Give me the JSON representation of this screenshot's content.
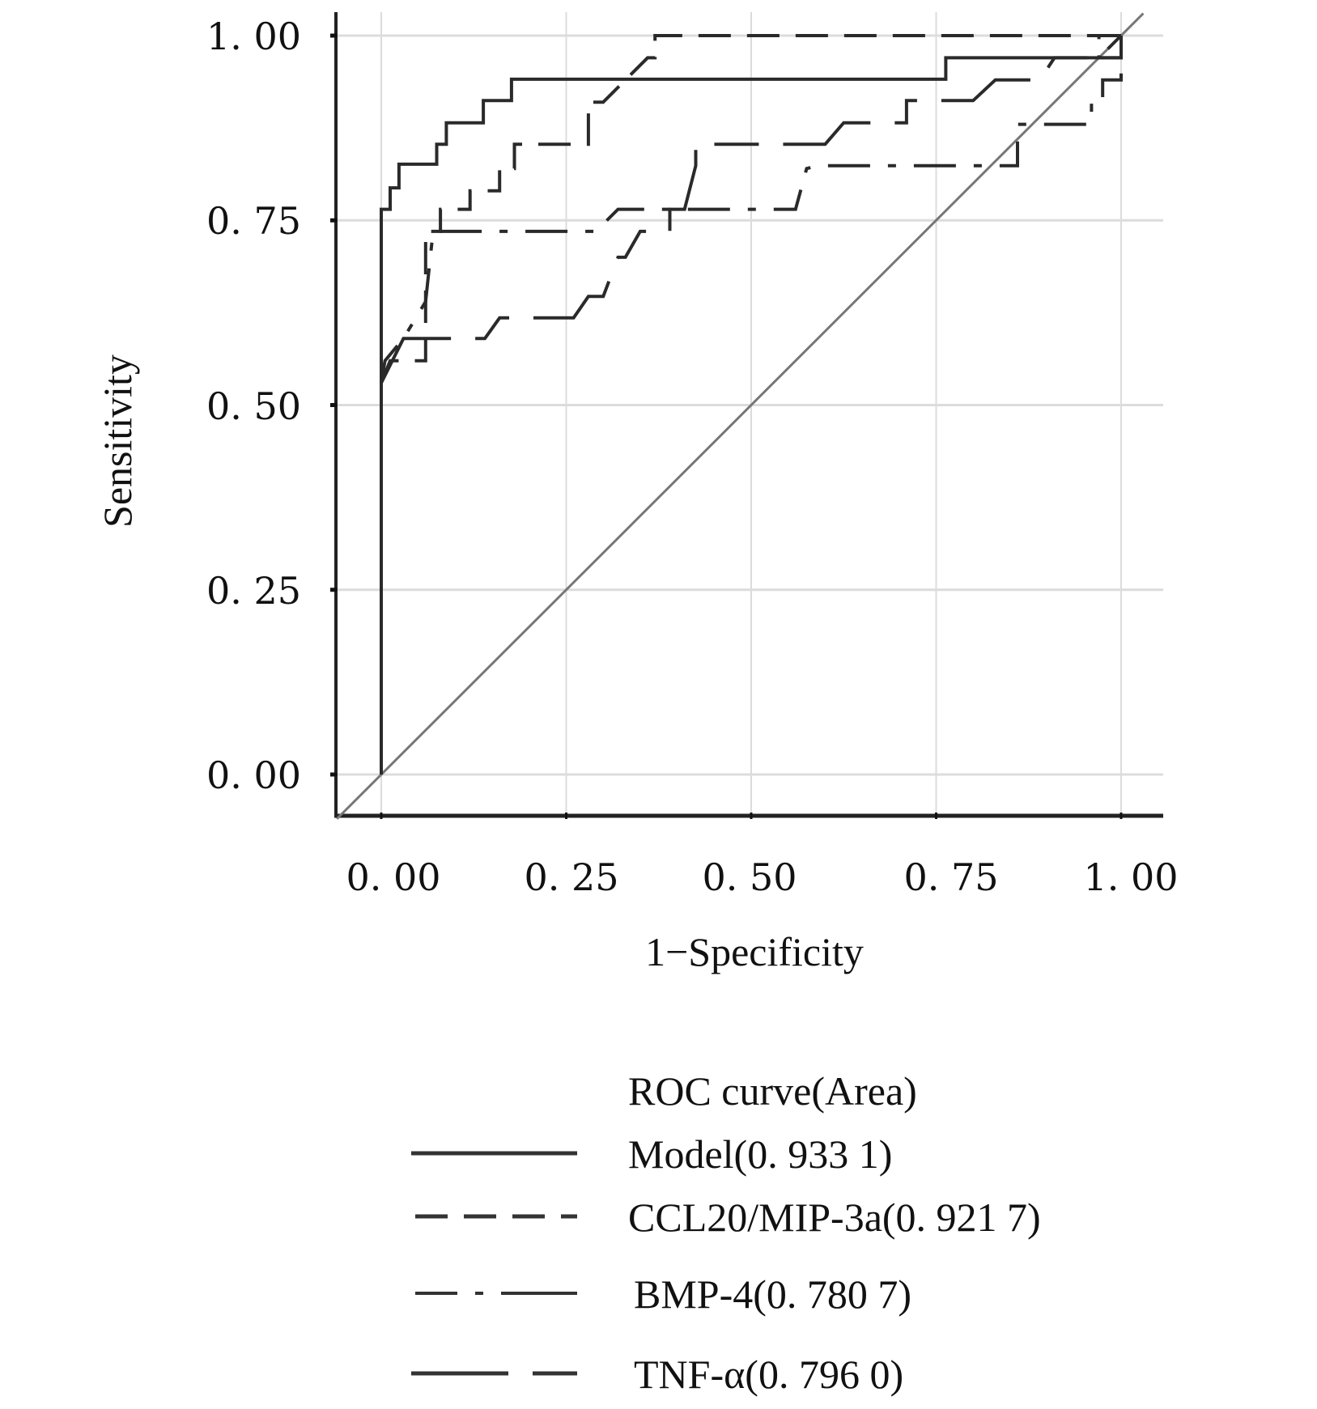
{
  "chart_data": {
    "type": "line",
    "title": "",
    "xlabel": "1−Specificity",
    "ylabel": "Sensitivity",
    "xlim": [
      -0.06,
      1.06
    ],
    "ylim": [
      -0.06,
      1.03
    ],
    "grid": true,
    "x_ticks": [
      0,
      0.25,
      0.5,
      0.75,
      1.0
    ],
    "y_ticks": [
      0,
      0.25,
      0.5,
      0.75,
      1.0
    ],
    "x_tick_labels": [
      "0. 00",
      "0. 25",
      "0. 50",
      "0. 75",
      "1. 00"
    ],
    "y_tick_labels": [
      "0. 00",
      "0. 25",
      "0. 50",
      "0. 75",
      "1. 00"
    ],
    "legend": {
      "title": "ROC curve(Area)",
      "placement": "bottom"
    },
    "reference_line": {
      "name": "Reference",
      "x": [
        -0.06,
        1.03
      ],
      "y": [
        -0.06,
        1.03
      ]
    },
    "series": [
      {
        "name": "Model",
        "label": "Model(0. 933  1)",
        "auc": 0.9331,
        "style": "solid",
        "x": [
          0,
          0,
          0.012,
          0.012,
          0.024,
          0.024,
          0.075,
          0.075,
          0.088,
          0.088,
          0.138,
          0.138,
          0.176,
          0.176,
          0.763,
          0.763,
          1.0,
          1.0
        ],
        "y": [
          0,
          0.765,
          0.765,
          0.794,
          0.794,
          0.826,
          0.826,
          0.853,
          0.853,
          0.882,
          0.882,
          0.912,
          0.912,
          0.941,
          0.941,
          0.97,
          0.97,
          1.0
        ]
      },
      {
        "name": "CCL20/MIP-3a",
        "label": "CCL20/MIP-3a(0. 921  7)",
        "auc": 0.9217,
        "style": "dash",
        "x": [
          0,
          0.012,
          0.025,
          0.06,
          0.06,
          0.08,
          0.08,
          0.12,
          0.12,
          0.16,
          0.16,
          0.18,
          0.18,
          0.28,
          0.28,
          0.3,
          0.33,
          0.33,
          0.36,
          0.37,
          0.37,
          1.0,
          1.0,
          0.97,
          0.97,
          1.0
        ],
        "y": [
          0.53,
          0.56,
          0.56,
          0.56,
          0.735,
          0.735,
          0.765,
          0.765,
          0.79,
          0.79,
          0.82,
          0.82,
          0.853,
          0.853,
          0.91,
          0.91,
          0.94,
          0.94,
          0.97,
          0.97,
          1.0,
          1.0,
          0.97,
          0.97,
          1.0,
          1.0
        ]
      },
      {
        "name": "BMP-4",
        "label": "BMP-4(0. 780  7)",
        "auc": 0.7807,
        "style": "dashdot",
        "x": [
          0,
          0.005,
          0.03,
          0.06,
          0.07,
          0.075,
          0.29,
          0.32,
          0.56,
          0.575,
          0.59,
          0.86,
          0.86,
          0.94,
          0.95,
          0.96,
          0.96,
          0.975,
          0.975,
          1.0,
          1.0
        ],
        "y": [
          0.53,
          0.56,
          0.59,
          0.64,
          0.735,
          0.735,
          0.735,
          0.765,
          0.765,
          0.82,
          0.824,
          0.824,
          0.88,
          0.88,
          0.88,
          0.88,
          0.91,
          0.91,
          0.94,
          0.94,
          1.0
        ]
      },
      {
        "name": "TNF-α",
        "label": "TNF-α(0. 796  0)",
        "auc": 0.796,
        "style": "longshort",
        "x": [
          0,
          0.03,
          0.07,
          0.14,
          0.16,
          0.26,
          0.28,
          0.3,
          0.32,
          0.33,
          0.35,
          0.39,
          0.39,
          0.41,
          0.425,
          0.425,
          0.6,
          0.625,
          0.71,
          0.71,
          0.8,
          0.83,
          0.89,
          0.91,
          0.97,
          1.0
        ],
        "y": [
          0.53,
          0.59,
          0.59,
          0.59,
          0.618,
          0.618,
          0.647,
          0.647,
          0.7,
          0.7,
          0.735,
          0.735,
          0.765,
          0.765,
          0.824,
          0.853,
          0.853,
          0.882,
          0.882,
          0.912,
          0.912,
          0.94,
          0.94,
          0.97,
          0.97,
          1.0
        ]
      }
    ]
  }
}
